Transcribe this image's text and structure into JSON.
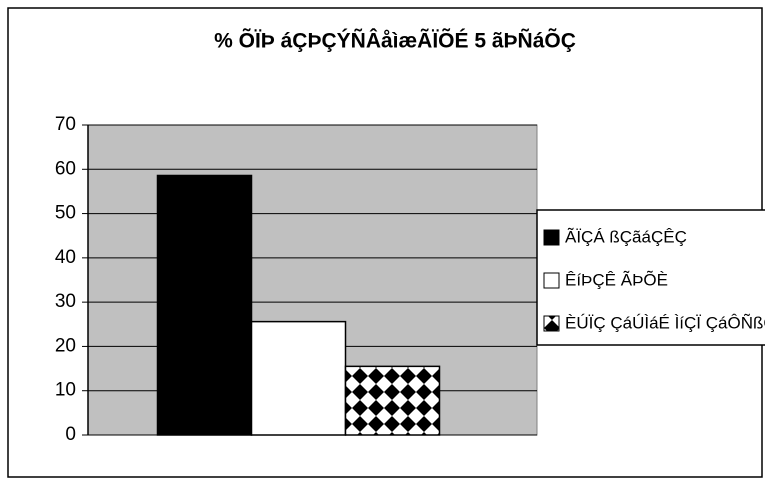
{
  "chart_data": {
    "type": "bar",
    "title": "% ÕÏÞ áÇÞÇÝÑÂåìæÃÏÕÉ 5 ãÞÑáÕÇ",
    "categories": [
      null
    ],
    "series": [
      {
        "name": "ÃÏÇÁ ßÇãáÇÊÇ",
        "color": "#000000",
        "values": [
          58.6
        ]
      },
      {
        "name": "ÊíÞÇÊ ÃÞÕÈ",
        "color": "#ffffff",
        "values": [
          25.6
        ]
      },
      {
        "name": "ÈÚÏÇ ÇáÚÌáÉ ÌíÇÏ ÇáÔÑßÇÊ",
        "color": "#ffffff",
        "pattern": "checker",
        "values": [
          15.5
        ]
      }
    ],
    "ylim": [
      0,
      70
    ],
    "yticks": [
      0,
      10,
      20,
      30,
      40,
      50,
      60,
      70
    ],
    "grid": true,
    "plot_background": "#c0c0c0",
    "legend": "right"
  }
}
